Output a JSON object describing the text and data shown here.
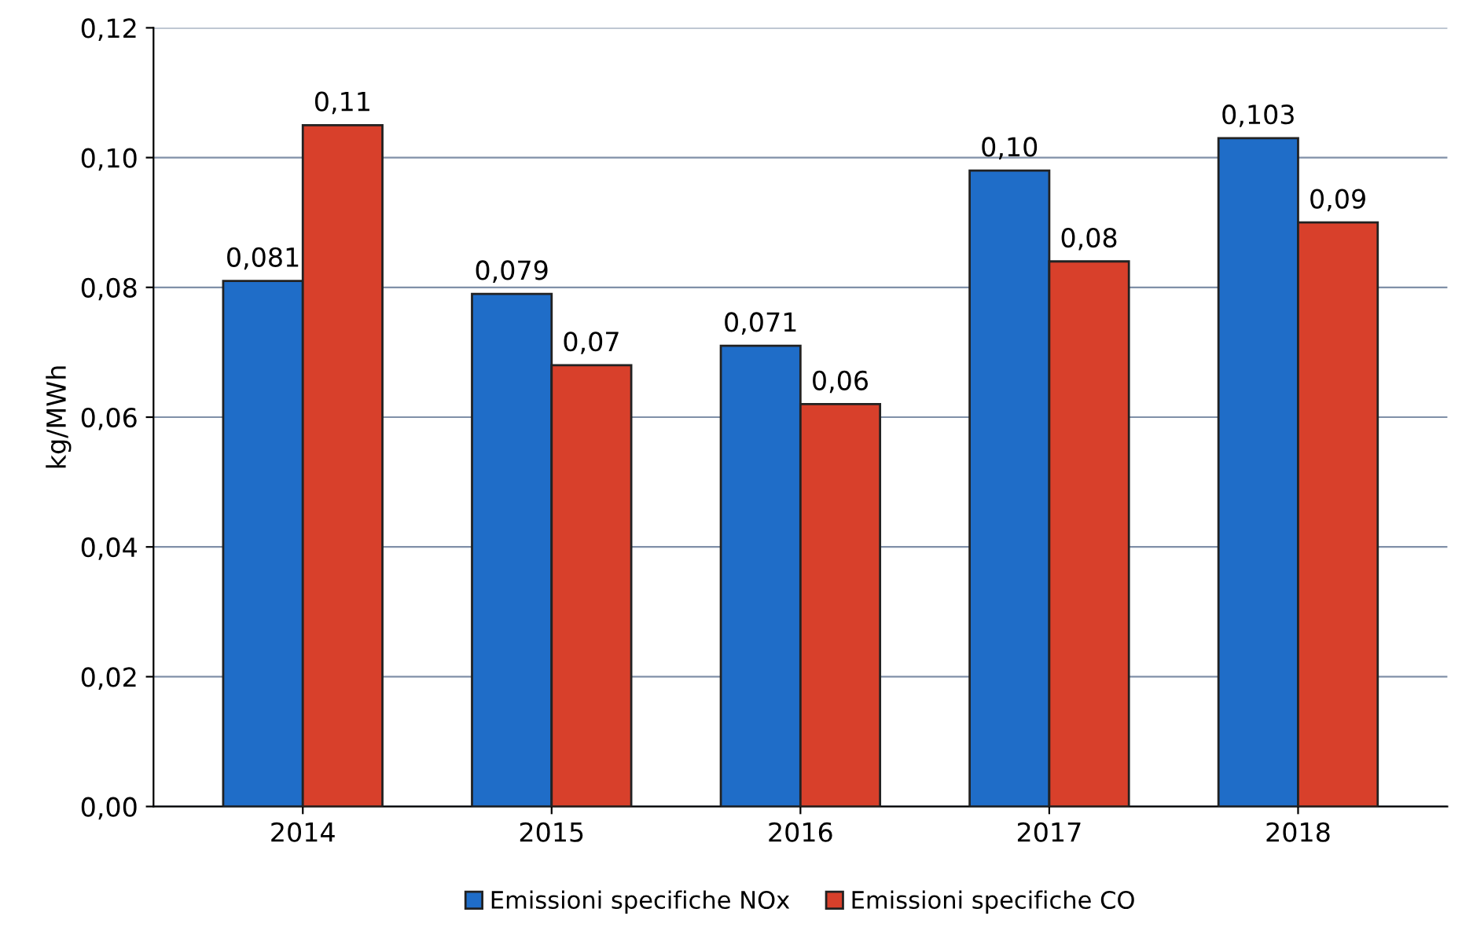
{
  "chart_data": {
    "type": "bar",
    "ylabel": "kg/MWh",
    "categories": [
      "2014",
      "2015",
      "2016",
      "2017",
      "2018"
    ],
    "series": [
      {
        "name": "Emissioni specifiche NOx",
        "color": "#1f6dc8",
        "values": [
          0.081,
          0.079,
          0.071,
          0.098,
          0.103
        ],
        "value_labels": [
          "0,081",
          "0,079",
          "0,071",
          "0,10",
          "0,103"
        ]
      },
      {
        "name": "Emissioni specifiche CO",
        "color": "#d8402b",
        "values": [
          0.105,
          0.068,
          0.062,
          0.084,
          0.09
        ],
        "value_labels": [
          "0,11",
          "0,07",
          "0,06",
          "0,08",
          "0,09"
        ]
      }
    ],
    "ylim": [
      0,
      0.12
    ],
    "yticks": [
      {
        "value": 0,
        "label": "0,00"
      },
      {
        "value": 0.02,
        "label": "0,02"
      },
      {
        "value": 0.04,
        "label": "0,04"
      },
      {
        "value": 0.06,
        "label": "0,06"
      },
      {
        "value": 0.08,
        "label": "0,08"
      },
      {
        "value": 0.1,
        "label": "0,10"
      },
      {
        "value": 0.12,
        "label": "0,12"
      }
    ],
    "grid": "y",
    "legend": "bottom"
  }
}
